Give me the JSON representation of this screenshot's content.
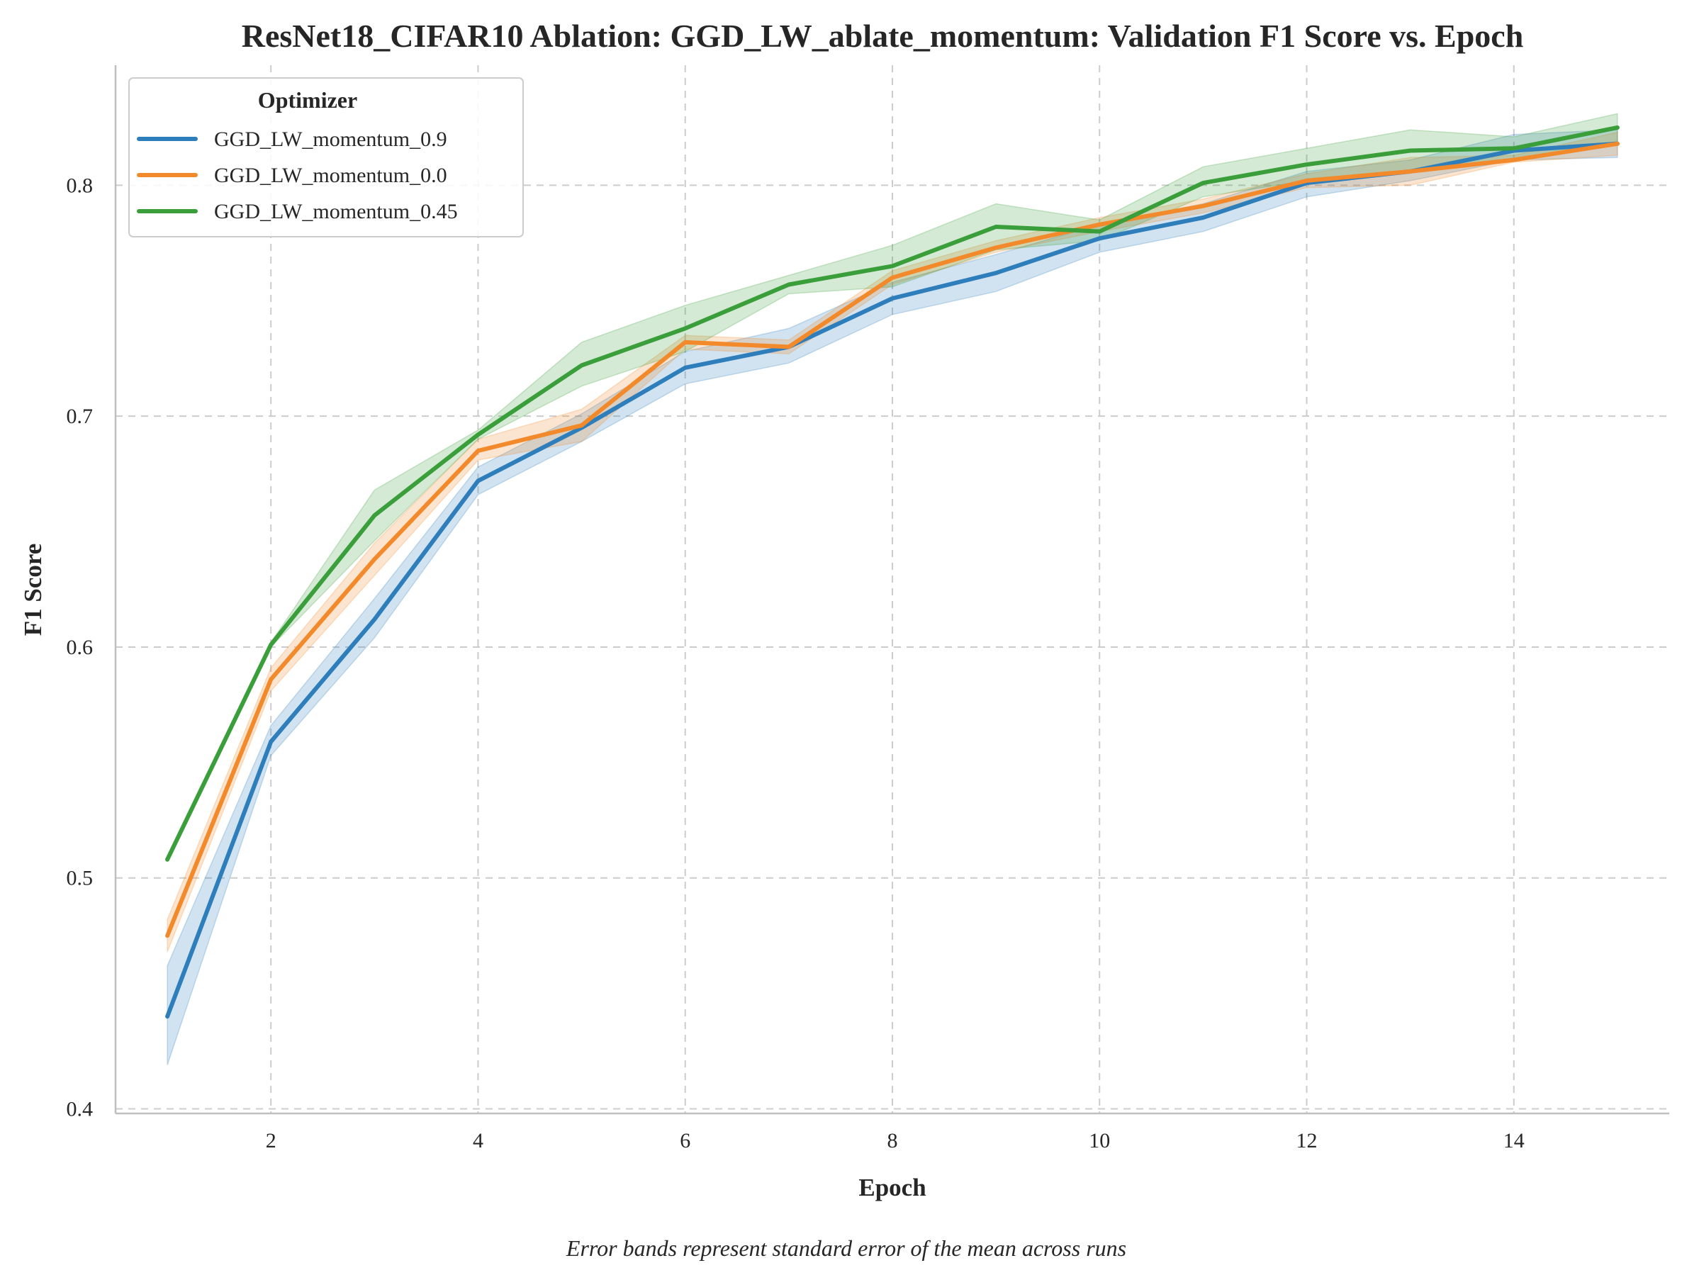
{
  "chart_data": {
    "type": "line",
    "title": "ResNet18_CIFAR10 Ablation: GGD_LW_ablate_momentum: Validation F1 Score vs. Epoch",
    "xlabel": "Epoch",
    "ylabel": "F1 Score",
    "caption": "Error bands represent standard error of the mean across runs",
    "xlim": [
      0.5,
      15.5
    ],
    "ylim": [
      0.398,
      0.852
    ],
    "xticks": [
      2,
      4,
      6,
      8,
      10,
      12,
      14
    ],
    "yticks": [
      0.4,
      0.5,
      0.6,
      0.7,
      0.8
    ],
    "ytick_labels": [
      "0.4",
      "0.5",
      "0.6",
      "0.7",
      "0.8"
    ],
    "grid": true,
    "legend": {
      "title": "Optimizer",
      "position": "top-left"
    },
    "x": [
      1,
      2,
      3,
      4,
      5,
      6,
      7,
      8,
      9,
      10,
      11,
      12,
      13,
      14,
      15
    ],
    "series": [
      {
        "name": "GGD_LW_momentum_0.9",
        "color": "#2e7ebc",
        "values": [
          0.44,
          0.559,
          0.612,
          0.672,
          0.695,
          0.721,
          0.73,
          0.751,
          0.762,
          0.777,
          0.786,
          0.801,
          0.806,
          0.815,
          0.818
        ],
        "lower": [
          0.419,
          0.553,
          0.604,
          0.666,
          0.689,
          0.714,
          0.723,
          0.744,
          0.754,
          0.771,
          0.78,
          0.795,
          0.802,
          0.811,
          0.812
        ],
        "upper": [
          0.462,
          0.566,
          0.621,
          0.678,
          0.701,
          0.728,
          0.738,
          0.758,
          0.77,
          0.783,
          0.792,
          0.806,
          0.811,
          0.822,
          0.824
        ]
      },
      {
        "name": "GGD_LW_momentum_0.0",
        "color": "#f28a2b",
        "values": [
          0.475,
          0.586,
          0.638,
          0.685,
          0.696,
          0.732,
          0.73,
          0.76,
          0.773,
          0.783,
          0.791,
          0.802,
          0.806,
          0.811,
          0.818
        ],
        "lower": [
          0.468,
          0.581,
          0.631,
          0.681,
          0.689,
          0.729,
          0.727,
          0.757,
          0.771,
          0.78,
          0.788,
          0.799,
          0.8,
          0.81,
          0.813
        ],
        "upper": [
          0.482,
          0.591,
          0.645,
          0.69,
          0.703,
          0.735,
          0.733,
          0.763,
          0.776,
          0.786,
          0.794,
          0.805,
          0.812,
          0.813,
          0.823
        ]
      },
      {
        "name": "GGD_LW_momentum_0.45",
        "color": "#3a9e3a",
        "values": [
          0.508,
          0.601,
          0.657,
          0.692,
          0.722,
          0.738,
          0.757,
          0.765,
          0.782,
          0.78,
          0.801,
          0.809,
          0.815,
          0.816,
          0.825
        ],
        "lower": [
          0.507,
          0.6,
          0.646,
          0.69,
          0.713,
          0.728,
          0.753,
          0.756,
          0.772,
          0.776,
          0.795,
          0.802,
          0.806,
          0.811,
          0.819
        ],
        "upper": [
          0.509,
          0.602,
          0.668,
          0.694,
          0.732,
          0.748,
          0.761,
          0.774,
          0.792,
          0.785,
          0.808,
          0.816,
          0.824,
          0.821,
          0.831
        ]
      }
    ]
  }
}
